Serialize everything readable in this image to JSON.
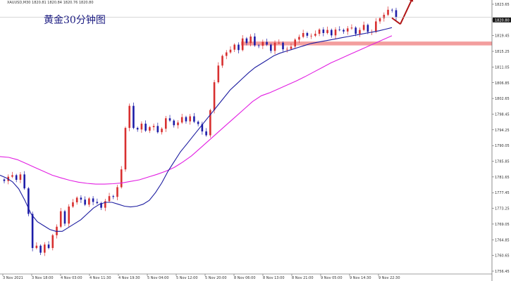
{
  "window": {
    "symbol_info": "XAUUSD,M30  1820.81 1820.84 1820.76 1820.80",
    "chart_caption": "黄金30分钟图"
  },
  "colors": {
    "background": "#ffffff",
    "bull_candle": "#d83030",
    "bear_candle": "#1d1da8",
    "ma_fast": "#1c1ca0",
    "ma_slow": "#e21ee2",
    "resistance_band": "#f29494",
    "arrow": "#b01515",
    "current_price_line": "#c0c0c0",
    "price_tag_bg": "#1a1a1a"
  },
  "chart_data": {
    "type": "candlestick",
    "y_range": [
      1754.5,
      1824.5
    ],
    "current_price": 1820.8,
    "price_ticks": [
      "1823.65",
      "1820.80",
      "1819.45",
      "1815.25",
      "1811.05",
      "1806.85",
      "1802.65",
      "1798.45",
      "1794.25",
      "1790.05",
      "1785.85",
      "1781.65",
      "1777.45",
      "1773.25",
      "1769.05",
      "1764.85",
      "1760.65",
      "1756.45"
    ],
    "time_ticks": [
      "3 Nov 2021",
      "3 Nov 18:00",
      "4 Nov 03:00",
      "4 Nov 11:30",
      "4 Nov 19:30",
      "5 Nov 04:00",
      "5 Nov 12:00",
      "5 Nov 20:00",
      "8 Nov 06:00",
      "8 Nov 13:00",
      "8 Nov 21:00",
      "9 Nov 05:00",
      "9 Nov 14:30",
      "9 Nov 22:30"
    ],
    "closes": [
      1778.5,
      1779.6,
      1780.0,
      1778.8,
      1780.2,
      1776.6,
      1770.0,
      1761.2,
      1761.8,
      1760.0,
      1762.1,
      1761.2,
      1764.5,
      1766.7,
      1770.7,
      1767.5,
      1771.9,
      1773.0,
      1774.2,
      1773.7,
      1772.4,
      1774.0,
      1773.1,
      1772.8,
      1771.6,
      1773.3,
      1774.6,
      1774.4,
      1776.9,
      1781.5,
      1792.2,
      1797.9,
      1792.2,
      1791.8,
      1793.3,
      1791.5,
      1792.4,
      1792.7,
      1791.1,
      1792.0,
      1794.7,
      1794.1,
      1792.9,
      1793.6,
      1795.0,
      1793.9,
      1795.2,
      1793.8,
      1793.2,
      1791.3,
      1790.3,
      1796.8,
      1804.0,
      1808.3,
      1810.8,
      1811.7,
      1812.4,
      1813.7,
      1812.3,
      1815.3,
      1814.1,
      1815.8,
      1813.5,
      1813.4,
      1814.4,
      1813.7,
      1812.1,
      1814.2,
      1814.2,
      1812.5,
      1812.6,
      1813.2,
      1815.0,
      1815.7,
      1816.7,
      1816.0,
      1816.0,
      1816.5,
      1817.6,
      1816.7,
      1817.5,
      1816.1,
      1817.6,
      1817.5,
      1817.1,
      1817.9,
      1818.1,
      1816.5,
      1817.5,
      1818.8,
      1817.0,
      1817.0,
      1819.7,
      1820.5,
      1821.4,
      1822.7,
      1822.6,
      1820.8
    ],
    "ma_fast": [
      1780.0,
      1779.3,
      1778.3,
      1776.5,
      1773.5,
      1770.0,
      1768.0,
      1767.0,
      1766.0,
      1765.5,
      1765.5,
      1766.5,
      1767.5,
      1768.5,
      1770.0,
      1771.5,
      1772.5,
      1773.0,
      1773.0,
      1772.5,
      1772.0,
      1771.8,
      1772.0,
      1772.5,
      1773.5,
      1775.5,
      1778.0,
      1781.0,
      1783.5,
      1786.0,
      1788.0,
      1790.0,
      1792.0,
      1794.0,
      1796.0,
      1798.0,
      1800.0,
      1802.0,
      1803.5,
      1805.0,
      1806.5,
      1807.8,
      1808.8,
      1809.8,
      1810.8,
      1811.5,
      1812.0,
      1812.5,
      1813.0,
      1813.5,
      1814.0,
      1814.3,
      1814.6,
      1814.9,
      1815.2,
      1815.5,
      1815.8,
      1816.1,
      1816.4,
      1816.7,
      1817.0,
      1817.3,
      1817.7,
      1818.1
    ],
    "ma_slow": [
      1784.8,
      1784.6,
      1784.0,
      1783.0,
      1782.0,
      1781.0,
      1780.0,
      1779.3,
      1778.7,
      1778.2,
      1777.9,
      1777.7,
      1777.7,
      1777.8,
      1778.0,
      1778.4,
      1778.8,
      1779.5,
      1780.2,
      1781.0,
      1782.0,
      1783.4,
      1785.0,
      1787.0,
      1789.0,
      1791.0,
      1793.0,
      1795.0,
      1797.0,
      1799.0,
      1800.5,
      1801.3,
      1802.3,
      1803.3,
      1804.3,
      1805.4,
      1806.6,
      1807.8,
      1809.0,
      1810.0,
      1811.0,
      1812.0,
      1813.0,
      1814.0,
      1815.0,
      1816.0
    ],
    "resistance_zone": {
      "from": 1813.5,
      "to": 1814.5
    },
    "forecast_arrow": {
      "points": [
        [
          1820.6,
          1821.5
        ],
        [
          1819.0,
          1818.5
        ],
        [
          1826.0,
          1825.5
        ]
      ]
    }
  }
}
